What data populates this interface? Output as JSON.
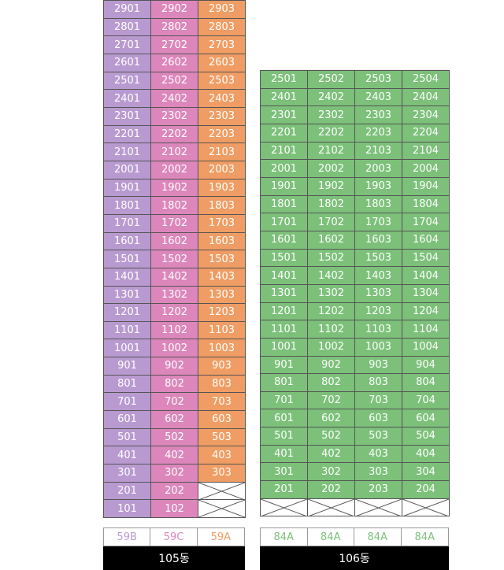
{
  "colors": {
    "59B": "#b99ad0",
    "59C": "#dc86bb",
    "59A": "#ef9d64",
    "84A": "#7cc07a",
    "grid_line": "#555555",
    "label_bg": "#000000"
  },
  "building_105": {
    "label": "105동",
    "type_labels": [
      "59B",
      "59C",
      "59A"
    ],
    "floors": [
      [
        "2901",
        "2902",
        "2903"
      ],
      [
        "2801",
        "2802",
        "2803"
      ],
      [
        "2701",
        "2702",
        "2703"
      ],
      [
        "2601",
        "2602",
        "2603"
      ],
      [
        "2501",
        "2502",
        "2503"
      ],
      [
        "2401",
        "2402",
        "2403"
      ],
      [
        "2301",
        "2302",
        "2303"
      ],
      [
        "2201",
        "2202",
        "2203"
      ],
      [
        "2101",
        "2102",
        "2103"
      ],
      [
        "2001",
        "2002",
        "2003"
      ],
      [
        "1901",
        "1902",
        "1903"
      ],
      [
        "1801",
        "1802",
        "1803"
      ],
      [
        "1701",
        "1702",
        "1703"
      ],
      [
        "1601",
        "1602",
        "1603"
      ],
      [
        "1501",
        "1502",
        "1503"
      ],
      [
        "1401",
        "1402",
        "1403"
      ],
      [
        "1301",
        "1302",
        "1303"
      ],
      [
        "1201",
        "1202",
        "1203"
      ],
      [
        "1101",
        "1102",
        "1103"
      ],
      [
        "1001",
        "1002",
        "1003"
      ],
      [
        "901",
        "902",
        "903"
      ],
      [
        "801",
        "802",
        "803"
      ],
      [
        "701",
        "702",
        "703"
      ],
      [
        "601",
        "602",
        "603"
      ],
      [
        "501",
        "502",
        "503"
      ],
      [
        "401",
        "402",
        "403"
      ],
      [
        "301",
        "302",
        "303"
      ],
      [
        "201",
        "202",
        ""
      ],
      [
        "101",
        "102",
        ""
      ]
    ]
  },
  "building_106": {
    "label": "106동",
    "type_labels": [
      "84A",
      "84A",
      "84A",
      "84A"
    ],
    "floors": [
      [
        "2501",
        "2502",
        "2503",
        "2504"
      ],
      [
        "2401",
        "2402",
        "2403",
        "2404"
      ],
      [
        "2301",
        "2302",
        "2303",
        "2304"
      ],
      [
        "2201",
        "2202",
        "2203",
        "2204"
      ],
      [
        "2101",
        "2102",
        "2103",
        "2104"
      ],
      [
        "2001",
        "2002",
        "2003",
        "2004"
      ],
      [
        "1901",
        "1902",
        "1903",
        "1904"
      ],
      [
        "1801",
        "1802",
        "1803",
        "1804"
      ],
      [
        "1701",
        "1702",
        "1703",
        "1704"
      ],
      [
        "1601",
        "1602",
        "1603",
        "1604"
      ],
      [
        "1501",
        "1502",
        "1503",
        "1504"
      ],
      [
        "1401",
        "1402",
        "1403",
        "1404"
      ],
      [
        "1301",
        "1302",
        "1303",
        "1304"
      ],
      [
        "1201",
        "1202",
        "1203",
        "1204"
      ],
      [
        "1101",
        "1102",
        "1103",
        "1104"
      ],
      [
        "1001",
        "1002",
        "1003",
        "1004"
      ],
      [
        "901",
        "902",
        "903",
        "904"
      ],
      [
        "801",
        "802",
        "803",
        "804"
      ],
      [
        "701",
        "702",
        "703",
        "704"
      ],
      [
        "601",
        "602",
        "603",
        "604"
      ],
      [
        "501",
        "502",
        "503",
        "504"
      ],
      [
        "401",
        "402",
        "403",
        "404"
      ],
      [
        "301",
        "302",
        "303",
        "304"
      ],
      [
        "201",
        "202",
        "203",
        "204"
      ],
      [
        "",
        "",
        "",
        ""
      ]
    ]
  }
}
